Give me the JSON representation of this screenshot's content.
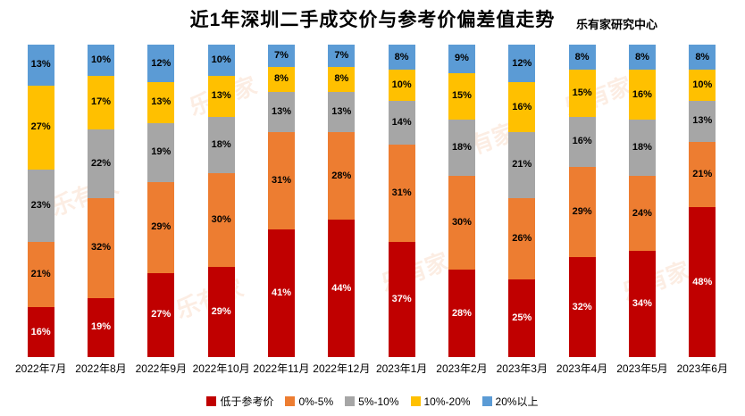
{
  "header": {
    "title": "近1年深圳二手成交价与参考价偏差值走势",
    "source": "乐有家研究中心"
  },
  "watermark": {
    "text": "乐有家",
    "color": "#ED7D31"
  },
  "chart_data": {
    "type": "bar",
    "stacked": true,
    "title": "近1年深圳二手成交价与参考价偏差值走势",
    "source": "乐有家研究中心",
    "unit": "%",
    "ylim": [
      0,
      100
    ],
    "grid": false,
    "legend_position": "bottom",
    "categories": [
      "2022年7月",
      "2022年8月",
      "2022年9月",
      "2022年10月",
      "2022年11月",
      "2022年12月",
      "2023年1月",
      "2023年2月",
      "2023年3月",
      "2023年4月",
      "2023年5月",
      "2023年6月"
    ],
    "series": [
      {
        "name": "低于参考价",
        "color": "#C00000",
        "label_color": "#FFFFFF",
        "values": [
          16,
          19,
          27,
          29,
          41,
          44,
          37,
          28,
          25,
          32,
          34,
          48
        ]
      },
      {
        "name": "0%-5%",
        "color": "#ED7D31",
        "label_color": "#000000",
        "values": [
          21,
          32,
          29,
          30,
          31,
          28,
          31,
          30,
          26,
          29,
          24,
          21
        ]
      },
      {
        "name": "5%-10%",
        "color": "#A6A6A6",
        "label_color": "#000000",
        "values": [
          23,
          22,
          19,
          18,
          13,
          13,
          14,
          18,
          21,
          16,
          18,
          13
        ]
      },
      {
        "name": "10%-20%",
        "color": "#FFC000",
        "label_color": "#000000",
        "values": [
          27,
          17,
          13,
          13,
          8,
          8,
          10,
          15,
          16,
          15,
          16,
          10
        ]
      },
      {
        "name": "20%以上",
        "color": "#5B9BD5",
        "label_color": "#000000",
        "values": [
          13,
          10,
          12,
          10,
          7,
          7,
          8,
          9,
          12,
          8,
          8,
          8
        ]
      }
    ]
  }
}
